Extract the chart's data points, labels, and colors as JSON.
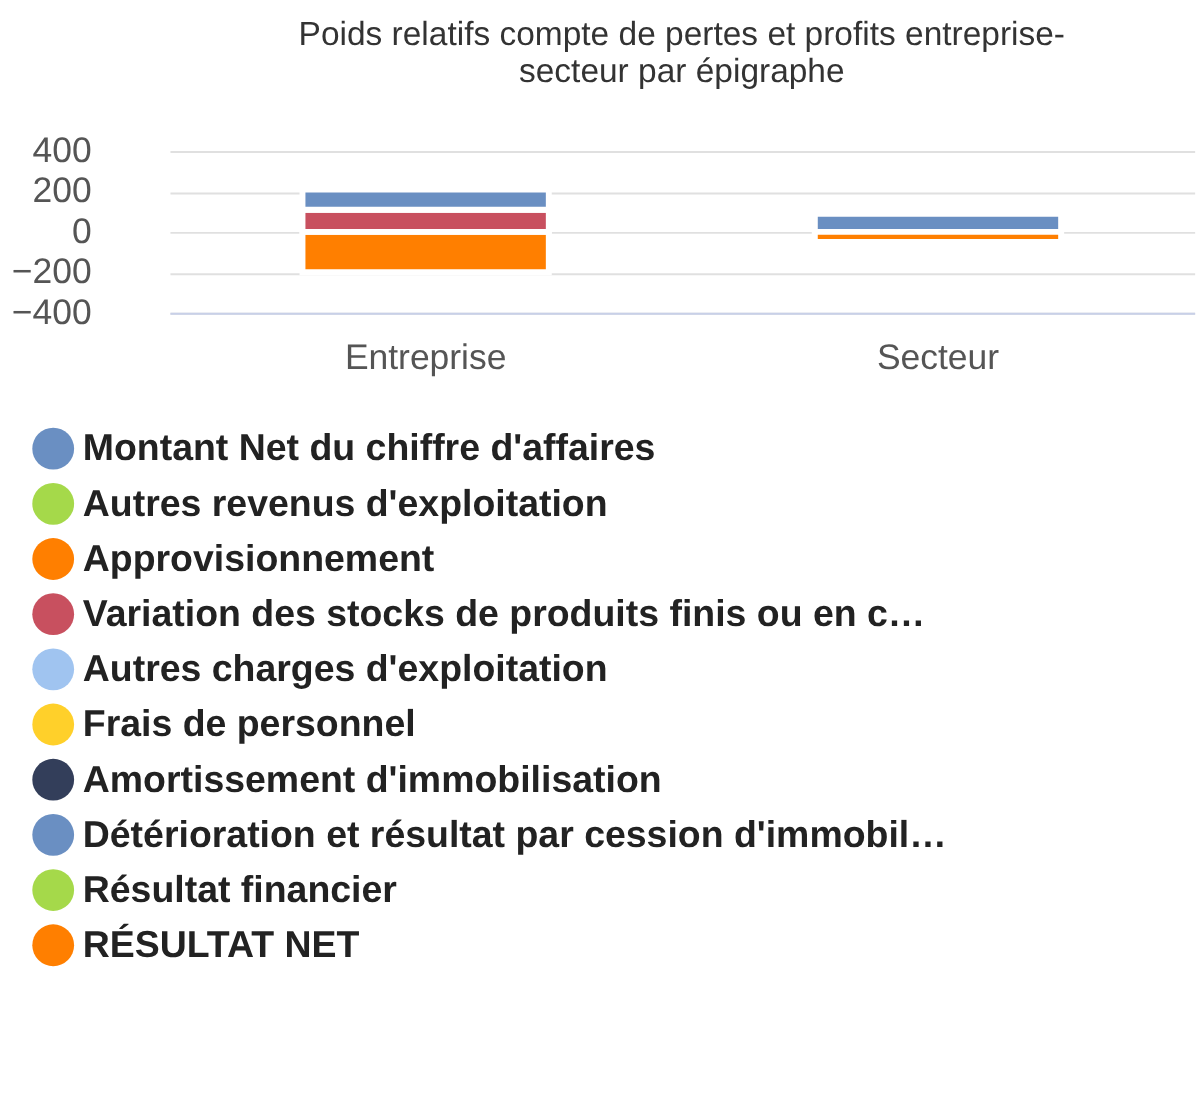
{
  "chart_data": {
    "type": "bar",
    "stacked": true,
    "title": "Poids relatifs compte de pertes et profits entreprise-secteur par épigraphe",
    "categories": [
      "Entreprise",
      "Secteur"
    ],
    "series": [
      {
        "name": "Montant Net du chiffre d'affaires",
        "color": "#6a8fc2",
        "values": [
          null,
          90
        ]
      },
      {
        "name": "Autres revenus d'exploitation",
        "color": "#a5d94a",
        "values": [
          null,
          null
        ]
      },
      {
        "name": "Approvisionnement",
        "color": "#ff7f00",
        "values": [
          -200,
          -50
        ]
      },
      {
        "name": "Variation des stocks de produits finis ou en c…",
        "color": "#c8505f",
        "values": [
          110,
          null
        ]
      },
      {
        "name": "Autres charges d'exploitation",
        "color": "#a0c4f0",
        "values": [
          null,
          null
        ]
      },
      {
        "name": "Frais de personnel",
        "color": "#ffd02a",
        "values": [
          null,
          null
        ]
      },
      {
        "name": "Amortissement d'immobilisation",
        "color": "#333e5a",
        "values": [
          null,
          null
        ]
      },
      {
        "name": "Détérioration et résultat par cession d'immobil…",
        "color": "#6a8fc2",
        "values": [
          100,
          null
        ]
      },
      {
        "name": "Résultat financier",
        "color": "#a5d94a",
        "values": [
          null,
          null
        ]
      },
      {
        "name": "RÉSULTAT NET",
        "color": "#ff7f00",
        "values": [
          null,
          null
        ]
      }
    ],
    "ylim": [
      -400,
      400
    ],
    "yticks": [
      -400,
      -200,
      0,
      200,
      400
    ],
    "grid": "y",
    "legend": "bottom"
  }
}
